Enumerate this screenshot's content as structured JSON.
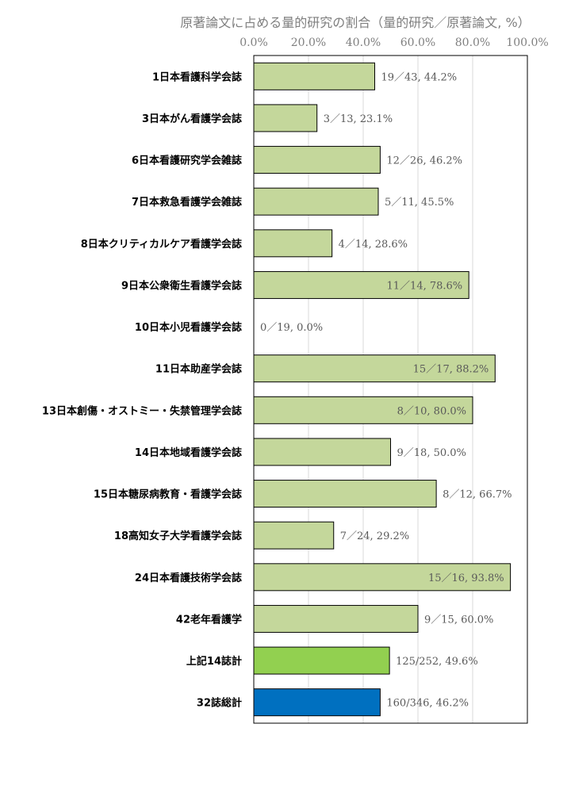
{
  "chart_data": {
    "type": "bar",
    "orientation": "horizontal",
    "title": "原著論文に占める量的研究の割合（量的研究／原著論文, %）",
    "xlim": [
      0,
      100
    ],
    "x_ticks": [
      "0.0%",
      "20.0%",
      "40.0%",
      "60.0%",
      "80.0%",
      "100.0%"
    ],
    "grid": true,
    "categories": [
      "1日本看護科学会誌",
      "3日本がん看護学会誌",
      "6日本看護研究学会雑誌",
      "7日本救急看護学会雑誌",
      "8日本クリティカルケア看護学会誌",
      "9日本公衆衛生看護学会誌",
      "10日本小児看護学会誌",
      "11日本助産学会誌",
      "13日本創傷・オストミー・失禁管理学会誌",
      "14日本地域看護学会誌",
      "15日本糖尿病教育・看護学会誌",
      "18高知女子大学看護学会誌",
      "24日本看護技術学会誌",
      "42老年看護学",
      "上記14誌計",
      "32誌総計"
    ],
    "values": [
      44.2,
      23.1,
      46.2,
      45.5,
      28.6,
      78.6,
      0.0,
      88.2,
      80.0,
      50.0,
      66.7,
      29.2,
      93.8,
      60.0,
      49.6,
      46.2
    ],
    "data_labels": [
      "19／43, 44.2%",
      "3／13, 23.1%",
      "12／26, 46.2%",
      "5／11, 45.5%",
      "4／14, 28.6%",
      "11／14, 78.6%",
      "0／19, 0.0%",
      "15／17, 88.2%",
      "8／10, 80.0%",
      "9／18, 50.0%",
      "8／12, 66.7%",
      "7／24, 29.2%",
      "15／16, 93.8%",
      "9／15, 60.0%",
      "125/252, 49.6%",
      "160/346, 46.2%"
    ],
    "label_inside": [
      false,
      false,
      false,
      false,
      false,
      true,
      false,
      true,
      true,
      false,
      false,
      false,
      true,
      false,
      false,
      false
    ],
    "bar_colors": [
      "#c4d79b",
      "#c4d79b",
      "#c4d79b",
      "#c4d79b",
      "#c4d79b",
      "#c4d79b",
      "#c4d79b",
      "#c4d79b",
      "#c4d79b",
      "#c4d79b",
      "#c4d79b",
      "#c4d79b",
      "#c4d79b",
      "#c4d79b",
      "#92d050",
      "#0070c0"
    ]
  }
}
